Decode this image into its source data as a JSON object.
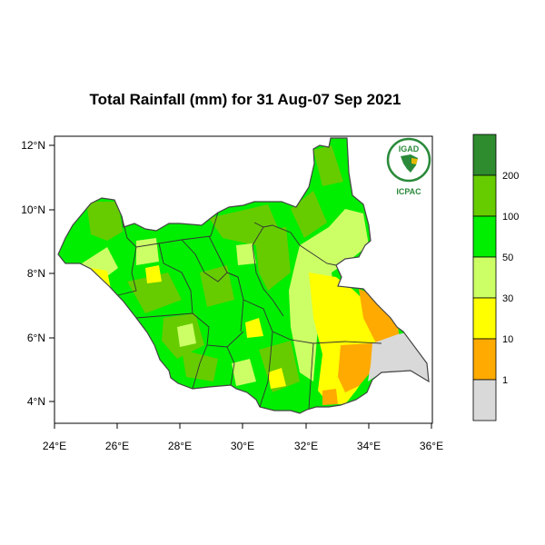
{
  "title": "Total Rainfall (mm) for 31 Aug-07 Sep 2021",
  "axes": {
    "lon_ticks": [
      "24°E",
      "26°E",
      "28°E",
      "30°E",
      "32°E",
      "34°E",
      "36°E"
    ],
    "lat_ticks": [
      "12°N",
      "10°N",
      "8°N",
      "6°N",
      "4°N"
    ]
  },
  "legend": {
    "classes": [
      {
        "range": "above 200",
        "color": "#2e8b2e"
      },
      {
        "range": "100-200",
        "color": "#66cc00"
      },
      {
        "range": "50-100",
        "color": "#00ee00"
      },
      {
        "range": "30-50",
        "color": "#ccff66"
      },
      {
        "range": "10-30",
        "color": "#ffff00"
      },
      {
        "range": "1-10",
        "color": "#ffaa00"
      },
      {
        "range": "below 1",
        "color": "#d9d9d9"
      }
    ],
    "labels": [
      "200",
      "100",
      "50",
      "30",
      "10",
      "1"
    ]
  },
  "logo": {
    "top_text": "IGAD",
    "bottom_text": "ICPAC",
    "color": "#2a8a3a"
  }
}
